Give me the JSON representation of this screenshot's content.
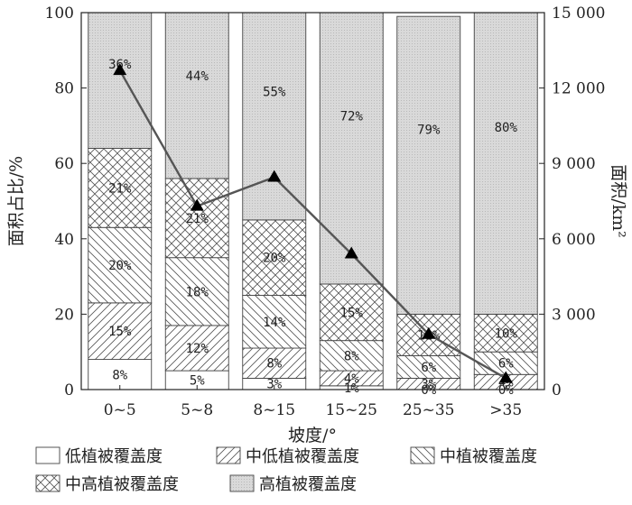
{
  "chart_data": {
    "type": "bar",
    "stacked": true,
    "categories": [
      "0~5",
      "5~8",
      "8~15",
      "15~25",
      "25~35",
      ">35"
    ],
    "series": [
      {
        "name": "低植被覆盖度",
        "fill": "empty",
        "values": [
          8,
          5,
          3,
          1,
          0,
          0
        ],
        "labels": [
          "8%",
          "5%",
          "3%",
          "1%",
          "0%",
          "0%"
        ]
      },
      {
        "name": "中低植被覆盖度",
        "fill": "hatch-forward",
        "values": [
          15,
          12,
          8,
          4,
          3,
          4
        ],
        "labels": [
          "15%",
          "12%",
          "8%",
          "4%",
          "3%",
          "4%"
        ]
      },
      {
        "name": "中植被覆盖度",
        "fill": "hatch-backward",
        "values": [
          20,
          18,
          14,
          8,
          6,
          6
        ],
        "labels": [
          "20%",
          "18%",
          "14%",
          "8%",
          "6%",
          "6%"
        ]
      },
      {
        "name": "中高植被覆盖度",
        "fill": "crosshatch",
        "values": [
          21,
          21,
          20,
          15,
          11,
          10
        ],
        "labels": [
          "21%",
          "21%",
          "20%",
          "15%",
          "11%",
          "10%"
        ]
      },
      {
        "name": "高植被覆盖度",
        "fill": "dotted-gray",
        "values": [
          36,
          44,
          55,
          72,
          79,
          80
        ],
        "labels": [
          "36%",
          "44%",
          "55%",
          "72%",
          "79%",
          "80%"
        ]
      }
    ],
    "line": {
      "values": [
        12700,
        7300,
        8450,
        5400,
        2200,
        450
      ]
    },
    "xlabel": "坡度/°",
    "ylabel": "面积占比/%",
    "y2label": "面积/km²",
    "ylim": [
      0,
      100
    ],
    "y2lim": [
      0,
      15000
    ],
    "yticks": [
      "0",
      "20",
      "40",
      "60",
      "80",
      "100"
    ],
    "y2ticks": [
      "0",
      "3 000",
      "6 000",
      "9 000",
      "12 000",
      "15 000"
    ],
    "legend_position": "bottom",
    "grid": false,
    "colors": {
      "line": "#555555",
      "marker": "#000000",
      "high_fill": "#d6d6d6",
      "stroke": "#444444"
    }
  }
}
